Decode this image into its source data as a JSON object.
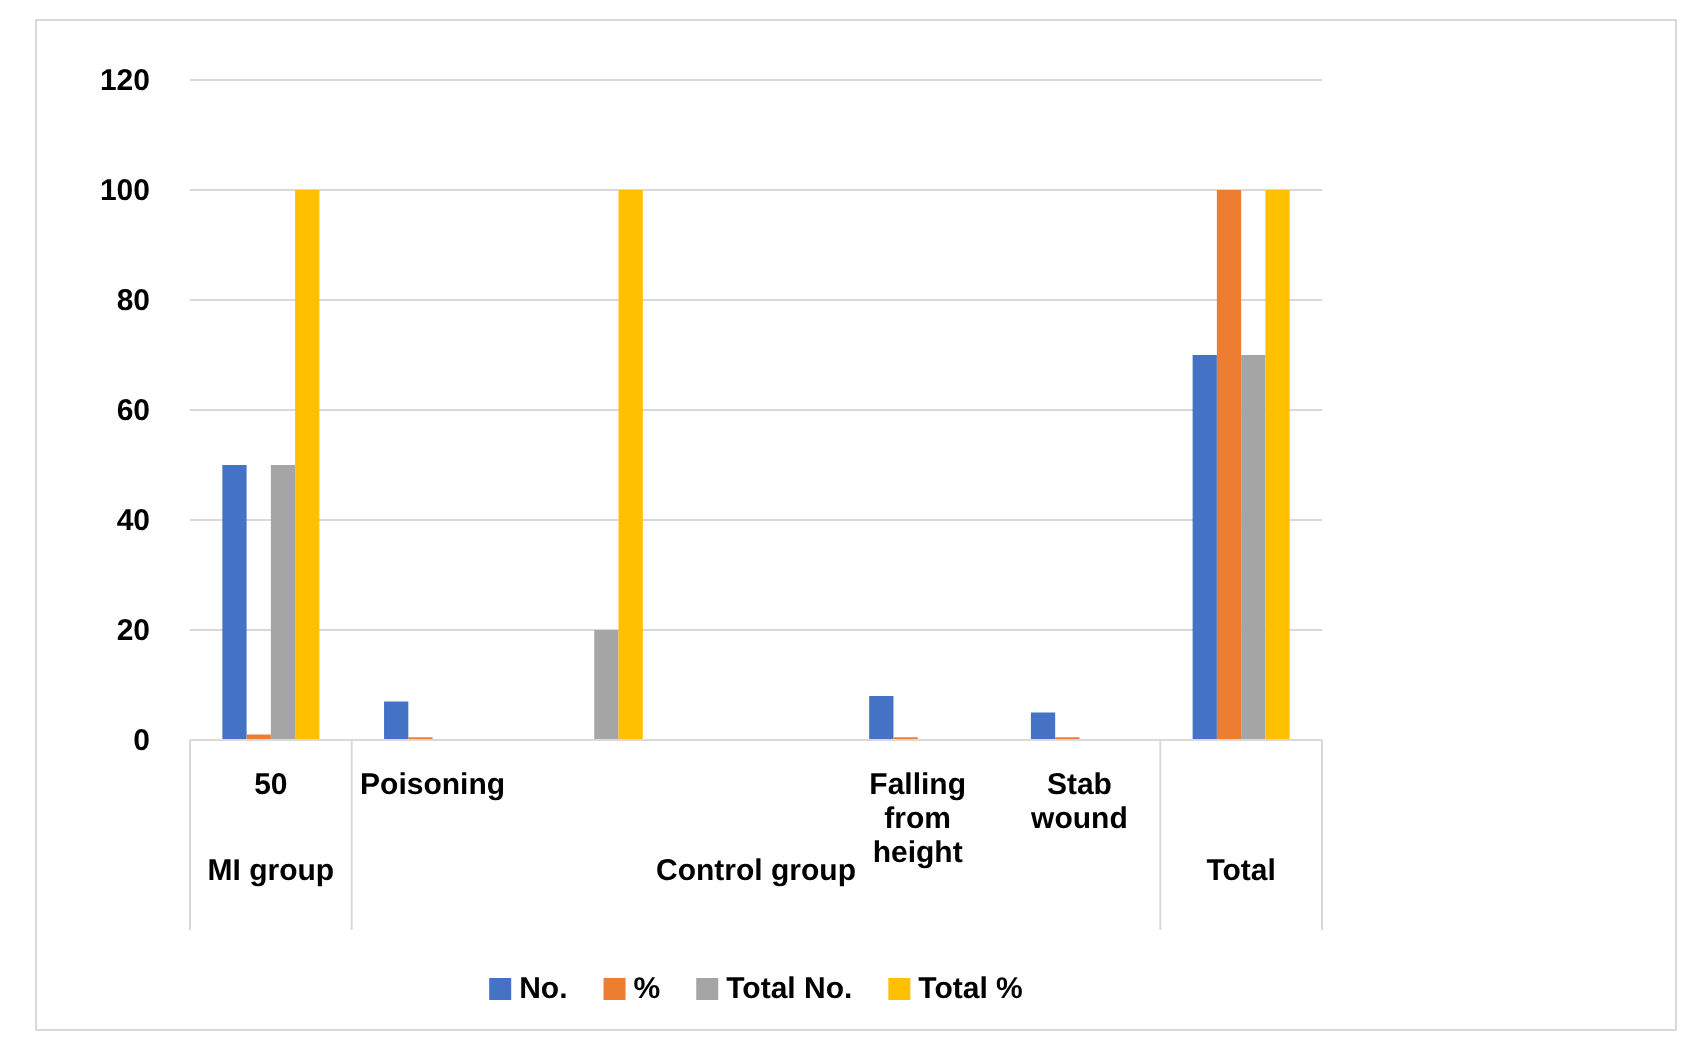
{
  "chart_data": {
    "type": "bar",
    "categories": [
      "50",
      "Poisoning",
      null,
      null,
      "Falling from height",
      "Stab wound",
      null
    ],
    "series": [
      {
        "name": "No.",
        "color": "#4472c4",
        "values": [
          50,
          7,
          null,
          null,
          8,
          5,
          70
        ]
      },
      {
        "name": "%",
        "color": "#ed7d31",
        "values": [
          1,
          0.5,
          null,
          null,
          0.5,
          0.5,
          100
        ]
      },
      {
        "name": "Total  No.",
        "color": "#a5a5a5",
        "values": [
          50,
          null,
          20,
          null,
          null,
          null,
          70
        ]
      },
      {
        "name": "Total  %",
        "color": "#ffc000",
        "values": [
          100,
          null,
          100,
          null,
          null,
          null,
          100
        ]
      }
    ],
    "ylim": [
      0,
      120
    ],
    "yticks": [
      0,
      20,
      40,
      60,
      80,
      100,
      120
    ],
    "grid": "y",
    "legend": "bottom",
    "annotations": [
      "MI group",
      "Control group",
      "Total"
    ]
  }
}
